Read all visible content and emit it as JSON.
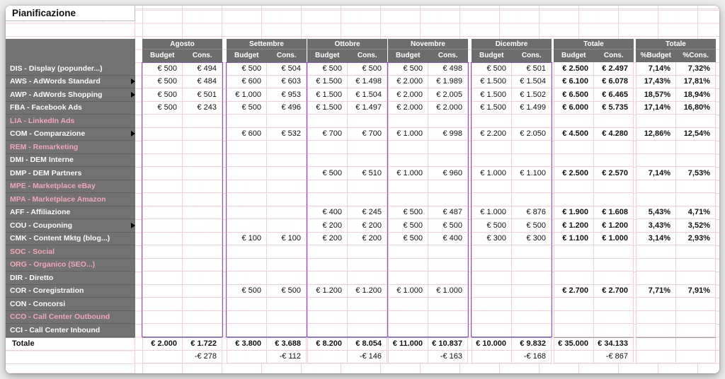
{
  "title": "Pianificazione",
  "colors": {
    "header_bg": "#6d6d6d",
    "sidebar_bg": "#727272",
    "grid_line": "#f0d0d9",
    "selection_border": "#8a55d0",
    "dim_label": "#f2a6ba"
  },
  "groups": [
    {
      "id": "agosto",
      "label": "Agosto",
      "cols": [
        "Budget",
        "Cons."
      ]
    },
    {
      "id": "settembre",
      "label": "Settembre",
      "cols": [
        "Budget",
        "Cons."
      ]
    },
    {
      "id": "ottobre",
      "label": "Ottobre",
      "cols": [
        "Budget",
        "Cons."
      ]
    },
    {
      "id": "novembre",
      "label": "Novembre",
      "cols": [
        "Budget",
        "Cons."
      ]
    },
    {
      "id": "dicembre",
      "label": "Dicembre",
      "cols": [
        "Budget",
        "Cons."
      ]
    },
    {
      "id": "totale",
      "label": "Totale",
      "cols": [
        "Budget",
        "Cons."
      ]
    },
    {
      "id": "totale-pct",
      "label": "Totale",
      "cols": [
        "%Budget",
        "%Cons."
      ]
    }
  ],
  "rows": [
    {
      "code": "DIS",
      "label": "DIS - Display (popunder...)",
      "dim": false,
      "label_marker": false,
      "cells": [
        [
          "€ 500",
          "€ 494"
        ],
        [
          "€ 500",
          "€ 504"
        ],
        [
          "€ 500",
          "€ 500"
        ],
        [
          "€ 500",
          "€ 498"
        ],
        [
          "€ 500",
          "€ 501"
        ],
        [
          "€ 2.500",
          "€ 2.497"
        ],
        [
          "7,14%",
          "7,32%"
        ]
      ]
    },
    {
      "code": "AWS",
      "label": "AWS - AdWords Standard",
      "dim": false,
      "label_marker": true,
      "cells": [
        [
          "€ 500",
          "€ 484"
        ],
        [
          "€ 600",
          "€ 603"
        ],
        [
          "€ 1.500",
          "€ 1.498"
        ],
        [
          "€ 2.000",
          "€ 1.989"
        ],
        [
          "€ 1.500",
          "€ 1.504"
        ],
        [
          "€ 6.100",
          "€ 6.078"
        ],
        [
          "17,43%",
          "17,81%"
        ]
      ]
    },
    {
      "code": "AWP",
      "label": "AWP - AdWords Shopping",
      "dim": false,
      "label_marker": true,
      "cells": [
        [
          "€ 500",
          "€ 501"
        ],
        [
          "€ 1.000",
          "€ 953"
        ],
        [
          "€ 1.500",
          "€ 1.504"
        ],
        [
          "€ 2.000",
          "€ 2.005"
        ],
        [
          "€ 1.500",
          "€ 1.502"
        ],
        [
          "€ 6.500",
          "€ 6.465"
        ],
        [
          "18,57%",
          "18,94%"
        ]
      ]
    },
    {
      "code": "FBA",
      "label": "FBA - Facebook Ads",
      "dim": false,
      "label_marker": false,
      "cells": [
        [
          "€ 500",
          "€ 243"
        ],
        [
          "€ 500",
          "€ 496"
        ],
        [
          "€ 1.500",
          "€ 1.497"
        ],
        [
          "€ 2.000",
          "€ 2.000"
        ],
        [
          "€ 1.500",
          "€ 1.499"
        ],
        [
          "€ 6.000",
          "€ 5.735"
        ],
        [
          "17,14%",
          "16,80%"
        ]
      ]
    },
    {
      "code": "LIA",
      "label": "LIA - LinkedIn Ads",
      "dim": true,
      "label_marker": false,
      "cells": [
        [
          "",
          ""
        ],
        [
          "",
          ""
        ],
        [
          "",
          ""
        ],
        [
          "",
          ""
        ],
        [
          "",
          ""
        ],
        [
          "",
          ""
        ],
        [
          "",
          ""
        ]
      ]
    },
    {
      "code": "COM",
      "label": "COM - Comparazione",
      "dim": false,
      "label_marker": true,
      "cells": [
        [
          "",
          ""
        ],
        [
          "€ 600",
          "€ 532"
        ],
        [
          "€ 700",
          "€ 700"
        ],
        [
          "€ 1.000",
          "€ 998"
        ],
        [
          "€ 2.200",
          "€ 2.050"
        ],
        [
          "€ 4.500",
          "€ 4.280"
        ],
        [
          "12,86%",
          "12,54%"
        ]
      ]
    },
    {
      "code": "REM",
      "label": "REM - Remarketing",
      "dim": true,
      "label_marker": false,
      "cells": [
        [
          "",
          ""
        ],
        [
          "",
          ""
        ],
        [
          "",
          ""
        ],
        [
          "",
          ""
        ],
        [
          "",
          ""
        ],
        [
          "",
          ""
        ],
        [
          "",
          ""
        ]
      ]
    },
    {
      "code": "DMI",
      "label": "DMI - DEM Interne",
      "dim": false,
      "label_marker": false,
      "cells": [
        [
          "",
          ""
        ],
        [
          "",
          ""
        ],
        [
          "",
          ""
        ],
        [
          "",
          ""
        ],
        [
          "",
          ""
        ],
        [
          "",
          ""
        ],
        [
          "",
          ""
        ]
      ]
    },
    {
      "code": "DMP",
      "label": "DMP - DEM Partners",
      "dim": false,
      "label_marker": false,
      "cells": [
        [
          "",
          ""
        ],
        [
          "",
          ""
        ],
        [
          "€ 500",
          "€ 510"
        ],
        [
          "€ 1.000",
          "€ 960"
        ],
        [
          "€ 1.000",
          "€ 1.100"
        ],
        [
          "€ 2.500",
          "€ 2.570"
        ],
        [
          "7,14%",
          "7,53%"
        ]
      ]
    },
    {
      "code": "MPE",
      "label": "MPE - Marketplace eBay",
      "dim": true,
      "label_marker": false,
      "cells": [
        [
          "",
          ""
        ],
        [
          "",
          ""
        ],
        [
          "",
          ""
        ],
        [
          "",
          ""
        ],
        [
          "",
          ""
        ],
        [
          "",
          ""
        ],
        [
          "",
          ""
        ]
      ]
    },
    {
      "code": "MPA",
      "label": "MPA - Marketplace Amazon",
      "dim": true,
      "label_marker": false,
      "cells": [
        [
          "",
          ""
        ],
        [
          "",
          ""
        ],
        [
          "",
          ""
        ],
        [
          "",
          ""
        ],
        [
          "",
          ""
        ],
        [
          "",
          ""
        ],
        [
          "",
          ""
        ]
      ]
    },
    {
      "code": "AFF",
      "label": "AFF - Affiliazione",
      "dim": false,
      "label_marker": false,
      "cells": [
        [
          "",
          ""
        ],
        [
          "",
          ""
        ],
        [
          "€ 400",
          "€ 245"
        ],
        [
          "€ 500",
          "€ 487"
        ],
        [
          "€ 1.000",
          "€ 876"
        ],
        [
          "€ 1.900",
          "€ 1.608"
        ],
        [
          "5,43%",
          "4,71%"
        ]
      ]
    },
    {
      "code": "COU",
      "label": "COU - Couponing",
      "dim": false,
      "label_marker": true,
      "cells": [
        [
          "",
          ""
        ],
        [
          "",
          ""
        ],
        [
          "€ 200",
          "€ 200"
        ],
        [
          "€ 500",
          "€ 500"
        ],
        [
          "€ 500",
          "€ 500"
        ],
        [
          "€ 1.200",
          "€ 1.200"
        ],
        [
          "3,43%",
          "3,52%"
        ]
      ]
    },
    {
      "code": "CMK",
      "label": "CMK - Content Mktg (blog...)",
      "dim": false,
      "label_marker": false,
      "cells": [
        [
          "",
          ""
        ],
        [
          "€ 100",
          "€ 100"
        ],
        [
          "€ 200",
          "€ 200"
        ],
        [
          "€ 500",
          "€ 400"
        ],
        [
          "€ 300",
          "€ 300"
        ],
        [
          "€ 1.100",
          "€ 1.000"
        ],
        [
          "3,14%",
          "2,93%"
        ]
      ]
    },
    {
      "code": "SOC",
      "label": "SOC - Social",
      "dim": true,
      "label_marker": false,
      "cells": [
        [
          "",
          ""
        ],
        [
          "",
          ""
        ],
        [
          "",
          ""
        ],
        [
          "",
          ""
        ],
        [
          "",
          ""
        ],
        [
          "",
          ""
        ],
        [
          "",
          ""
        ]
      ]
    },
    {
      "code": "ORG",
      "label": "ORG - Organico (SEO...)",
      "dim": true,
      "label_marker": false,
      "cells": [
        [
          "",
          ""
        ],
        [
          "",
          ""
        ],
        [
          "",
          ""
        ],
        [
          "",
          ""
        ],
        [
          "",
          ""
        ],
        [
          "",
          ""
        ],
        [
          "",
          ""
        ]
      ]
    },
    {
      "code": "DIR",
      "label": "DIR - Diretto",
      "dim": false,
      "label_marker": false,
      "cells": [
        [
          "",
          ""
        ],
        [
          "",
          ""
        ],
        [
          "",
          ""
        ],
        [
          "",
          ""
        ],
        [
          "",
          ""
        ],
        [
          "",
          ""
        ],
        [
          "",
          ""
        ]
      ]
    },
    {
      "code": "COR",
      "label": "COR - Coregistration",
      "dim": false,
      "label_marker": false,
      "cells": [
        [
          "",
          ""
        ],
        [
          "€ 500",
          "€ 500"
        ],
        [
          "€ 1.200",
          "€ 1.200"
        ],
        [
          "€ 1.000",
          "€ 1.000"
        ],
        [
          "",
          ""
        ],
        [
          "€ 2.700",
          "€ 2.700"
        ],
        [
          "7,71%",
          "7,91%"
        ]
      ]
    },
    {
      "code": "CON",
      "label": "CON - Concorsi",
      "dim": false,
      "label_marker": false,
      "cells": [
        [
          "",
          ""
        ],
        [
          "",
          ""
        ],
        [
          "",
          ""
        ],
        [
          "",
          ""
        ],
        [
          "",
          ""
        ],
        [
          "",
          ""
        ],
        [
          "",
          ""
        ]
      ]
    },
    {
      "code": "CCO",
      "label": "CCO - Call Center Outbound",
      "dim": true,
      "label_marker": false,
      "cells": [
        [
          "",
          ""
        ],
        [
          "",
          ""
        ],
        [
          "",
          ""
        ],
        [
          "",
          ""
        ],
        [
          "",
          ""
        ],
        [
          "",
          ""
        ],
        [
          "",
          ""
        ]
      ]
    },
    {
      "code": "CCI",
      "label": "CCI - Call Center Inbound",
      "dim": false,
      "label_marker": false,
      "cells": [
        [
          "",
          ""
        ],
        [
          "",
          ""
        ],
        [
          "",
          ""
        ],
        [
          "",
          ""
        ],
        [
          "",
          ""
        ],
        [
          "",
          ""
        ],
        [
          "",
          ""
        ]
      ]
    }
  ],
  "cell_markers": [
    {
      "row": 0,
      "group": 3,
      "col": 0
    },
    {
      "row": 5,
      "group": 3,
      "col": 0
    },
    {
      "row": 8,
      "group": 2,
      "col": 1
    },
    {
      "row": 8,
      "group": 3,
      "col": 0
    },
    {
      "row": 17,
      "group": 3,
      "col": 0
    }
  ],
  "total_row": {
    "label": "Totale",
    "cells": [
      [
        "€ 2.000",
        "€ 1.722"
      ],
      [
        "€ 3.800",
        "€ 3.688"
      ],
      [
        "€ 8.200",
        "€ 8.054"
      ],
      [
        "€ 11.000",
        "€ 10.837"
      ],
      [
        "€ 10.000",
        "€ 9.832"
      ],
      [
        "€ 35.000",
        "€ 34.133"
      ],
      [
        "",
        ""
      ]
    ]
  },
  "diff_row": {
    "cells": [
      [
        "",
        "-€ 278"
      ],
      [
        "",
        "-€ 112"
      ],
      [
        "",
        "-€ 146"
      ],
      [
        "",
        "-€ 163"
      ],
      [
        "",
        "-€ 168"
      ],
      [
        "",
        "-€ 867"
      ],
      [
        "",
        ""
      ]
    ]
  }
}
